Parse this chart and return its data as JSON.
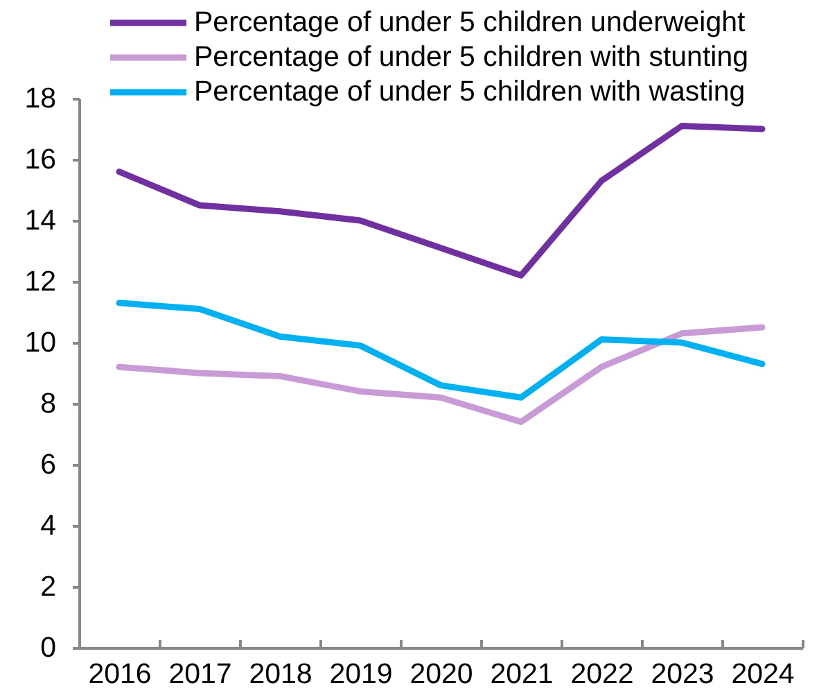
{
  "chart_data": {
    "type": "line",
    "categories": [
      "2016",
      "2017",
      "2018",
      "2019",
      "2020",
      "2021",
      "2022",
      "2023",
      "2024"
    ],
    "series": [
      {
        "name": "Percentage of under 5 children underweight",
        "color": "#7030a0",
        "values": [
          15.6,
          14.5,
          14.3,
          14.0,
          13.1,
          12.2,
          15.3,
          17.1,
          17.0
        ]
      },
      {
        "name": "Percentage of under 5 children with stunting",
        "color": "#c89bd6",
        "values": [
          9.2,
          9.0,
          8.9,
          8.4,
          8.2,
          7.4,
          9.2,
          10.3,
          10.5
        ]
      },
      {
        "name": "Percentage of under 5 children with wasting",
        "color": "#00b0f0",
        "values": [
          11.3,
          11.1,
          10.2,
          9.9,
          8.6,
          8.2,
          10.1,
          10.0,
          9.3
        ]
      }
    ],
    "ylim": [
      0,
      18
    ],
    "yticks": [
      0,
      2,
      4,
      6,
      8,
      10,
      12,
      14,
      16,
      18
    ],
    "grid": false,
    "legend": "top"
  }
}
